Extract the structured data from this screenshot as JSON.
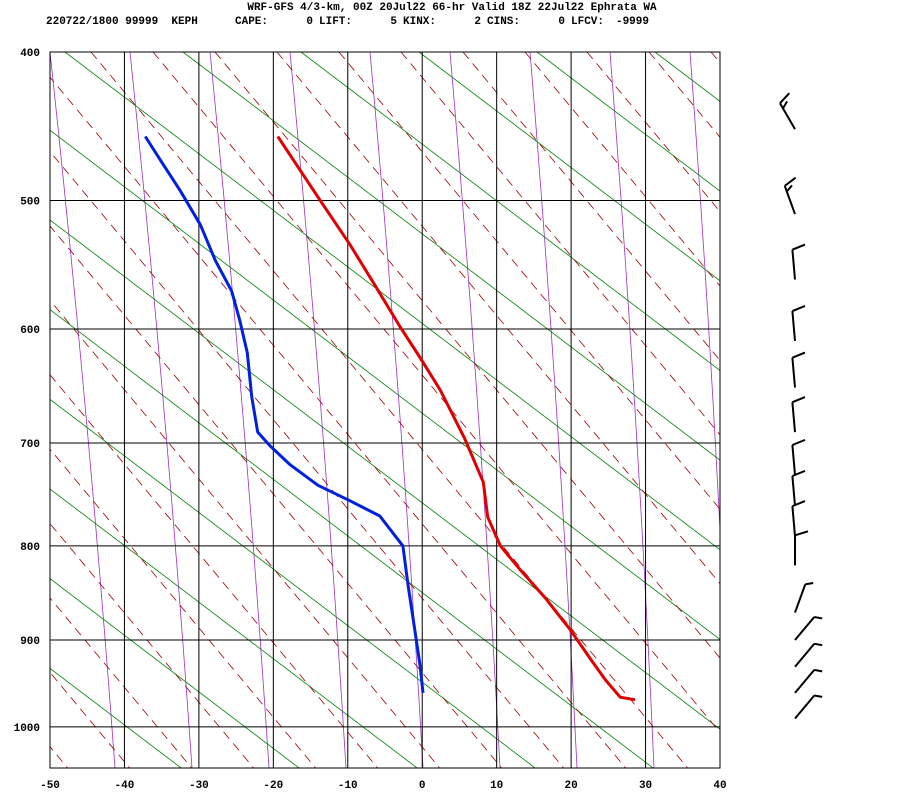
{
  "header": {
    "title": "WRF-GFS 4/3-km, 00Z 20Jul22 66-hr Valid 18Z 22Jul22 Ephrata WA",
    "station": "220722/1800 99999  KEPH",
    "indices": [
      {
        "label": "CAPE:",
        "value": 0
      },
      {
        "label": "LIFT:",
        "value": 5
      },
      {
        "label": "KINX:",
        "value": 2
      },
      {
        "label": "CINS:",
        "value": 0
      },
      {
        "label": "LFCV:",
        "value": -9999
      }
    ]
  },
  "chart_data": {
    "type": "skewt",
    "xlim": [
      -50,
      40
    ],
    "xticks": [
      -50,
      -40,
      -30,
      -20,
      -10,
      0,
      10,
      20,
      30,
      40
    ],
    "ylim": [
      400,
      1050
    ],
    "yticks": [
      400,
      500,
      600,
      700,
      800,
      900,
      1000
    ],
    "grid": true,
    "series": [
      {
        "color": "#e00000",
        "x": [
          -19.4,
          -13.7,
          -9.7,
          -6.3,
          -3.0,
          -0.3,
          2.4,
          5.7,
          8.2,
          8.8,
          10.5,
          13.1,
          16.5,
          19.9,
          22.5,
          24.6,
          26.6,
          28.6
        ],
        "y": [
          455,
          500,
          533,
          565,
          598,
          624,
          652,
          696,
          737,
          771,
          800,
          824,
          854,
          889,
          920,
          945,
          965,
          968
        ]
      },
      {
        "color": "#0020e0",
        "x": [
          -37.2,
          -35.2,
          -32.5,
          -29.8,
          -27.8,
          -25.6,
          -24.5,
          -23.5,
          -22.9,
          -22.1,
          -20.4,
          -17.8,
          -14.0,
          -9.7,
          -5.7,
          -2.6,
          -1.9,
          -1.0,
          -0.3,
          0.1
        ],
        "y": [
          455,
          471,
          493,
          518,
          545,
          569,
          593,
          620,
          658,
          690,
          703,
          720,
          740,
          755,
          770,
          800,
          841,
          889,
          928,
          960
        ]
      }
    ],
    "wind": {
      "pressure": [
        450,
        510,
        560,
        610,
        650,
        690,
        730,
        760,
        790,
        820,
        870,
        900,
        930,
        960,
        990
      ],
      "direction": [
        330,
        340,
        355,
        355,
        355,
        355,
        355,
        355,
        355,
        0,
        20,
        40,
        40,
        40,
        40
      ],
      "speed": [
        15,
        15,
        10,
        10,
        10,
        10,
        10,
        10,
        10,
        10,
        5,
        5,
        5,
        5,
        5
      ]
    }
  }
}
